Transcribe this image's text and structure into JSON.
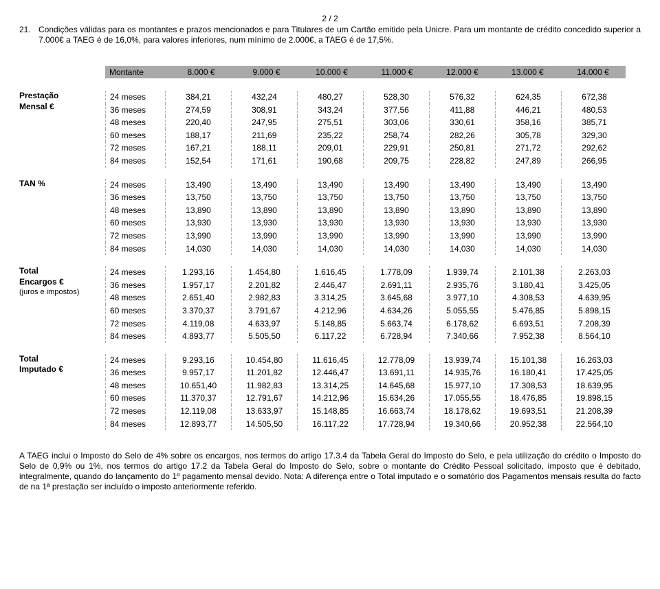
{
  "page_indicator": "2 / 2",
  "intro_num": "21.",
  "intro_text": "Condições válidas para os montantes e prazos mencionados e para Titulares de um Cartão emitido pela Unicre. Para um montante de crédito concedido superior a 7.000€ a TAEG é de 16,0%, para valores inferiores, num mínimo de 2.000€, a TAEG é de 17,5%.",
  "header_label": "Montante",
  "montantes": [
    "8.000 €",
    "9.000 €",
    "10.000 €",
    "11.000 €",
    "12.000 €",
    "13.000 €",
    "14.000 €"
  ],
  "periods": [
    "24 meses",
    "36 meses",
    "48 meses",
    "60 meses",
    "72 meses",
    "84 meses"
  ],
  "sections": [
    {
      "label": "Prestação Mensal €",
      "rows": [
        [
          "384,21",
          "432,24",
          "480,27",
          "528,30",
          "576,32",
          "624,35",
          "672,38"
        ],
        [
          "274,59",
          "308,91",
          "343,24",
          "377,56",
          "411,88",
          "446,21",
          "480,53"
        ],
        [
          "220,40",
          "247,95",
          "275,51",
          "303,06",
          "330,61",
          "358,16",
          "385,71"
        ],
        [
          "188,17",
          "211,69",
          "235,22",
          "258,74",
          "282,26",
          "305,78",
          "329,30"
        ],
        [
          "167,21",
          "188,11",
          "209,01",
          "229,91",
          "250,81",
          "271,72",
          "292,62"
        ],
        [
          "152,54",
          "171,61",
          "190,68",
          "209,75",
          "228,82",
          "247,89",
          "266,95"
        ]
      ]
    },
    {
      "label": "TAN %",
      "rows": [
        [
          "13,490",
          "13,490",
          "13,490",
          "13,490",
          "13,490",
          "13,490",
          "13,490"
        ],
        [
          "13,750",
          "13,750",
          "13,750",
          "13,750",
          "13,750",
          "13,750",
          "13,750"
        ],
        [
          "13,890",
          "13,890",
          "13,890",
          "13,890",
          "13,890",
          "13,890",
          "13,890"
        ],
        [
          "13,930",
          "13,930",
          "13,930",
          "13,930",
          "13,930",
          "13,930",
          "13,930"
        ],
        [
          "13,990",
          "13,990",
          "13,990",
          "13,990",
          "13,990",
          "13,990",
          "13,990"
        ],
        [
          "14,030",
          "14,030",
          "14,030",
          "14,030",
          "14,030",
          "14,030",
          "14,030"
        ]
      ]
    },
    {
      "label": "Total Encargos €",
      "sublabel": "(juros e impostos)",
      "rows": [
        [
          "1.293,16",
          "1.454,80",
          "1.616,45",
          "1.778,09",
          "1.939,74",
          "2.101,38",
          "2.263,03"
        ],
        [
          "1.957,17",
          "2.201,82",
          "2.446,47",
          "2.691,11",
          "2.935,76",
          "3.180,41",
          "3.425,05"
        ],
        [
          "2.651,40",
          "2.982,83",
          "3.314,25",
          "3.645,68",
          "3.977,10",
          "4.308,53",
          "4.639,95"
        ],
        [
          "3.370,37",
          "3.791,67",
          "4.212,96",
          "4.634,26",
          "5.055,55",
          "5.476,85",
          "5.898,15"
        ],
        [
          "4.119,08",
          "4.633,97",
          "5.148,85",
          "5.663,74",
          "6.178,62",
          "6.693,51",
          "7.208,39"
        ],
        [
          "4.893,77",
          "5.505,50",
          "6.117,22",
          "6.728,94",
          "7.340,66",
          "7.952,38",
          "8.564,10"
        ]
      ]
    },
    {
      "label": "Total Imputado €",
      "rows": [
        [
          "9.293,16",
          "10.454,80",
          "11.616,45",
          "12.778,09",
          "13.939,74",
          "15.101,38",
          "16.263,03"
        ],
        [
          "9.957,17",
          "11.201,82",
          "12.446,47",
          "13.691,11",
          "14.935,76",
          "16.180,41",
          "17.425,05"
        ],
        [
          "10.651,40",
          "11.982,83",
          "13.314,25",
          "14.645,68",
          "15.977,10",
          "17.308,53",
          "18.639,95"
        ],
        [
          "11.370,37",
          "12.791,67",
          "14.212,96",
          "15.634,26",
          "17.055,55",
          "18.476,85",
          "19.898,15"
        ],
        [
          "12.119,08",
          "13.633,97",
          "15.148,85",
          "16.663,74",
          "18.178,62",
          "19.693,51",
          "21.208,39"
        ],
        [
          "12.893,77",
          "14.505,50",
          "16.117,22",
          "17.728,94",
          "19.340,66",
          "20.952,38",
          "22.564,10"
        ]
      ]
    }
  ],
  "footer_text": "A TAEG inclui o Imposto do Selo de 4% sobre os encargos, nos termos do artigo 17.3.4 da Tabela Geral do Imposto do Selo, e pela utilização do crédito o Imposto do Selo de 0,9% ou 1%, nos termos do artigo 17.2 da Tabela Geral do Imposto do Selo, sobre o montante do Crédito Pessoal solicitado, imposto que é debitado, integralmente, quando do lançamento do 1º pagamento mensal devido. Nota: A diferença entre o Total imputado e o somatório dos Pagamentos mensais resulta do facto de na 1ª prestação ser incluído o imposto anteriormente referido."
}
